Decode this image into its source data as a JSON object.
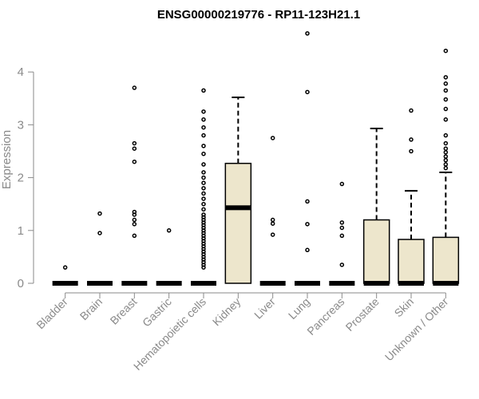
{
  "chart_data": {
    "type": "box",
    "title": "ENSG00000219776 - RP11-123H21.1",
    "xlabel": "",
    "ylabel": "Expression",
    "ylim": [
      -0.12,
      4.95
    ],
    "yticks": [
      0,
      1,
      2,
      3,
      4
    ],
    "grid": false,
    "colors": {
      "box_fill": "#ede6cc",
      "stroke": "#000000",
      "axis_text": "#8a8a8a"
    },
    "categories": [
      "Bladder",
      "Brain",
      "Breast",
      "Gastric",
      "Hematopoietic cells",
      "Kidney",
      "Liver",
      "Lung",
      "Pancreas",
      "Prostate",
      "Skin",
      "Unknown / Other"
    ],
    "boxes": [
      {
        "q1": 0,
        "median": 0,
        "q3": 0,
        "whisker_low": 0,
        "whisker_high": 0,
        "outliers": [
          0.3
        ]
      },
      {
        "q1": 0,
        "median": 0,
        "q3": 0,
        "whisker_low": 0,
        "whisker_high": 0,
        "outliers": [
          0.95,
          1.32
        ]
      },
      {
        "q1": 0,
        "median": 0,
        "q3": 0,
        "whisker_low": 0,
        "whisker_high": 0,
        "outliers": [
          0.9,
          1.12,
          1.2,
          1.3,
          1.35,
          2.3,
          2.55,
          2.65,
          3.7
        ]
      },
      {
        "q1": 0,
        "median": 0,
        "q3": 0,
        "whisker_low": 0,
        "whisker_high": 0,
        "outliers": [
          1.0
        ]
      },
      {
        "q1": 0,
        "median": 0,
        "q3": 0,
        "whisker_low": 0,
        "whisker_high": 0,
        "outliers": [
          0.3,
          0.35,
          0.4,
          0.45,
          0.5,
          0.55,
          0.6,
          0.65,
          0.7,
          0.75,
          0.8,
          0.85,
          0.9,
          0.95,
          1.0,
          1.05,
          1.1,
          1.15,
          1.2,
          1.25,
          1.3,
          1.4,
          1.5,
          1.6,
          1.7,
          1.8,
          1.9,
          2.0,
          2.1,
          2.25,
          2.45,
          2.6,
          2.8,
          2.95,
          3.1,
          3.25,
          3.65
        ]
      },
      {
        "q1": 0,
        "median": 1.43,
        "q3": 2.27,
        "whisker_low": 0,
        "whisker_high": 3.52,
        "outliers": []
      },
      {
        "q1": 0,
        "median": 0,
        "q3": 0,
        "whisker_low": 0,
        "whisker_high": 0,
        "outliers": [
          0.92,
          1.13,
          1.2,
          2.75
        ]
      },
      {
        "q1": 0,
        "median": 0,
        "q3": 0,
        "whisker_low": 0,
        "whisker_high": 0,
        "outliers": [
          0.63,
          1.12,
          1.55,
          3.62,
          4.73
        ]
      },
      {
        "q1": 0,
        "median": 0,
        "q3": 0,
        "whisker_low": 0,
        "whisker_high": 0,
        "outliers": [
          0.35,
          0.9,
          1.05,
          1.15,
          1.88
        ]
      },
      {
        "q1": 0,
        "median": 0,
        "q3": 1.2,
        "whisker_low": 0,
        "whisker_high": 2.93,
        "outliers": []
      },
      {
        "q1": 0,
        "median": 0,
        "q3": 0.83,
        "whisker_low": 0,
        "whisker_high": 1.75,
        "outliers": [
          2.5,
          2.72,
          3.27
        ]
      },
      {
        "q1": 0,
        "median": 0,
        "q3": 0.87,
        "whisker_low": 0,
        "whisker_high": 2.1,
        "outliers": [
          2.18,
          2.25,
          2.33,
          2.4,
          2.48,
          2.55,
          2.65,
          2.8,
          3.1,
          3.3,
          3.48,
          3.65,
          3.78,
          3.9,
          4.4
        ]
      }
    ]
  }
}
